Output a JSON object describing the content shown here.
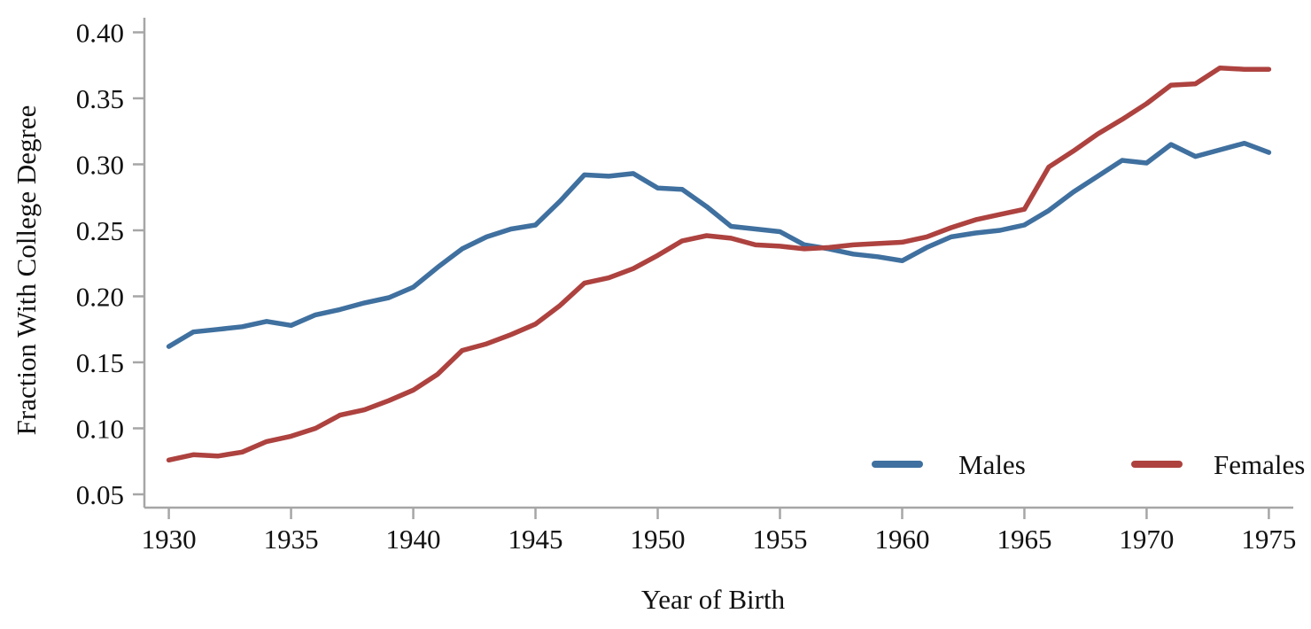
{
  "chart_data": {
    "type": "line",
    "title": "",
    "xlabel": "Year of Birth",
    "ylabel": "Fraction With College Degree",
    "x": [
      1930,
      1931,
      1932,
      1933,
      1934,
      1935,
      1936,
      1937,
      1938,
      1939,
      1940,
      1941,
      1942,
      1943,
      1944,
      1945,
      1946,
      1947,
      1948,
      1949,
      1950,
      1951,
      1952,
      1953,
      1954,
      1955,
      1956,
      1957,
      1958,
      1959,
      1960,
      1961,
      1962,
      1963,
      1964,
      1965,
      1966,
      1967,
      1968,
      1969,
      1970,
      1971,
      1972,
      1973,
      1974,
      1975
    ],
    "series": [
      {
        "name": "Males",
        "color": "#3f709f",
        "values": [
          0.162,
          0.173,
          0.175,
          0.177,
          0.181,
          0.178,
          0.186,
          0.19,
          0.195,
          0.199,
          0.207,
          0.222,
          0.236,
          0.245,
          0.251,
          0.254,
          0.272,
          0.292,
          0.291,
          0.293,
          0.282,
          0.281,
          0.268,
          0.253,
          0.251,
          0.249,
          0.239,
          0.236,
          0.232,
          0.23,
          0.227,
          0.237,
          0.245,
          0.248,
          0.25,
          0.254,
          0.265,
          0.279,
          0.291,
          0.303,
          0.301,
          0.315,
          0.306,
          0.311,
          0.316,
          0.309
        ]
      },
      {
        "name": "Females",
        "color": "#ad423f",
        "values": [
          0.076,
          0.08,
          0.079,
          0.082,
          0.09,
          0.094,
          0.1,
          0.11,
          0.114,
          0.121,
          0.129,
          0.141,
          0.159,
          0.164,
          0.171,
          0.179,
          0.193,
          0.21,
          0.214,
          0.221,
          0.231,
          0.242,
          0.246,
          0.244,
          0.239,
          0.238,
          0.236,
          0.237,
          0.239,
          0.24,
          0.241,
          0.245,
          0.252,
          0.258,
          0.262,
          0.266,
          0.298,
          0.31,
          0.323,
          0.334,
          0.346,
          0.36,
          0.361,
          0.373,
          0.372,
          0.372
        ]
      }
    ],
    "x_ticks": [
      1930,
      1935,
      1940,
      1945,
      1950,
      1955,
      1960,
      1965,
      1970,
      1975
    ],
    "y_ticks": [
      0.05,
      0.1,
      0.15,
      0.2,
      0.25,
      0.3,
      0.35,
      0.4
    ],
    "y_tick_labels": [
      "0.05",
      "0.10",
      "0.15",
      "0.20",
      "0.25",
      "0.30",
      "0.35",
      "0.40"
    ],
    "xlim": [
      1929,
      1976
    ],
    "ylim": [
      0.04,
      0.41
    ],
    "grid": false,
    "legend_position": "inside-bottom-right",
    "axis_color": "#a6a6a6",
    "label_color": "#111111"
  }
}
